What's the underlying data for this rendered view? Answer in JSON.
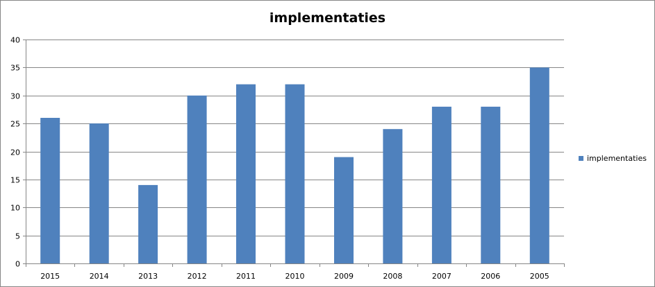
{
  "chart_data": {
    "type": "bar",
    "title": "implementaties",
    "categories": [
      "2015",
      "2014",
      "2013",
      "2012",
      "2011",
      "2010",
      "2009",
      "2008",
      "2007",
      "2006",
      "2005"
    ],
    "series": [
      {
        "name": "implementaties",
        "values": [
          26,
          25,
          14,
          30,
          32,
          32,
          19,
          24,
          28,
          28,
          35
        ],
        "color": "#4f81bd"
      }
    ],
    "ylim": [
      0,
      40
    ],
    "yticks": [
      0,
      5,
      10,
      15,
      20,
      25,
      30,
      35,
      40
    ],
    "grid": true,
    "legend_position": "right"
  }
}
